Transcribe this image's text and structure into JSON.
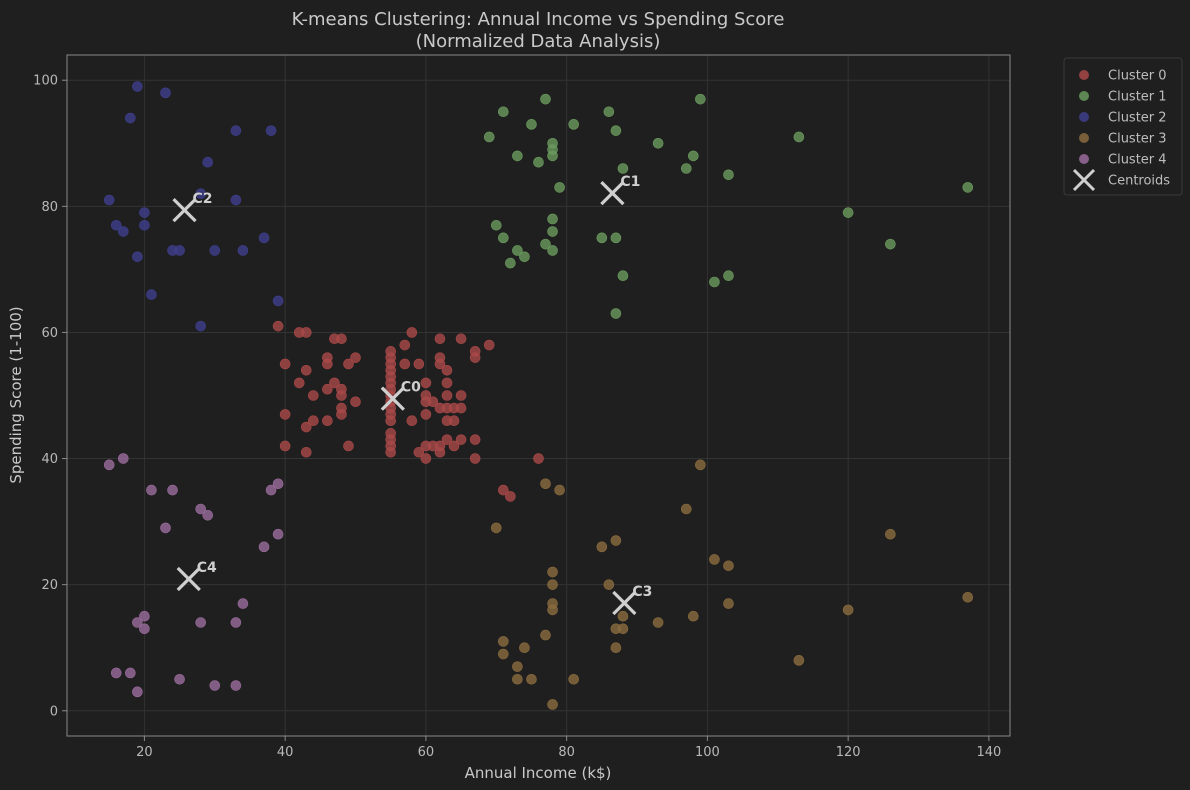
{
  "chart_data": {
    "type": "scatter",
    "title": "K-means Clustering: Annual Income vs Spending Score",
    "subtitle": "(Normalized Data Analysis)",
    "xlabel": "Annual Income (k$)",
    "ylabel": "Spending Score (1-100)",
    "xlim": [
      9,
      143
    ],
    "ylim": [
      -4,
      104
    ],
    "xticks": [
      20,
      40,
      60,
      80,
      100,
      120,
      140
    ],
    "yticks": [
      0,
      20,
      40,
      60,
      80,
      100
    ],
    "grid": true,
    "legend_position": "outside-top-right",
    "colors": {
      "background": "#1f1f1f",
      "axes_border": "#8a8a8a",
      "grid": "#333333",
      "centroid": "#cfcfcf"
    },
    "series": [
      {
        "name": "Cluster 0",
        "color": "#a94848",
        "points": [
          [
            39,
            61
          ],
          [
            42,
            60
          ],
          [
            43,
            60
          ],
          [
            47,
            59
          ],
          [
            48,
            59
          ],
          [
            58,
            60
          ],
          [
            57,
            58
          ],
          [
            62,
            59
          ],
          [
            65,
            59
          ],
          [
            69,
            58
          ],
          [
            67,
            57
          ],
          [
            62,
            56
          ],
          [
            67,
            56
          ],
          [
            40,
            55
          ],
          [
            46,
            56
          ],
          [
            50,
            56
          ],
          [
            46,
            55
          ],
          [
            49,
            55
          ],
          [
            55,
            57
          ],
          [
            55,
            56
          ],
          [
            55,
            55
          ],
          [
            55,
            54
          ],
          [
            57,
            55
          ],
          [
            59,
            55
          ],
          [
            62,
            55
          ],
          [
            63,
            54
          ],
          [
            42,
            52
          ],
          [
            43,
            54
          ],
          [
            46,
            51
          ],
          [
            47,
            52
          ],
          [
            48,
            51
          ],
          [
            55,
            53
          ],
          [
            55,
            52
          ],
          [
            55,
            51
          ],
          [
            60,
            52
          ],
          [
            63,
            52
          ],
          [
            44,
            50
          ],
          [
            48,
            50
          ],
          [
            50,
            49
          ],
          [
            55,
            50
          ],
          [
            55,
            49
          ],
          [
            55,
            48
          ],
          [
            60,
            50
          ],
          [
            60,
            49
          ],
          [
            61,
            49
          ],
          [
            62,
            48
          ],
          [
            63,
            50
          ],
          [
            63,
            48
          ],
          [
            65,
            50
          ],
          [
            65,
            48
          ],
          [
            40,
            47
          ],
          [
            48,
            48
          ],
          [
            48,
            47
          ],
          [
            55,
            47
          ],
          [
            55,
            46
          ],
          [
            60,
            47
          ],
          [
            64,
            48
          ],
          [
            43,
            45
          ],
          [
            44,
            46
          ],
          [
            46,
            46
          ],
          [
            55,
            44
          ],
          [
            55,
            43
          ],
          [
            58,
            46
          ],
          [
            63,
            46
          ],
          [
            64,
            46
          ],
          [
            40,
            42
          ],
          [
            43,
            41
          ],
          [
            49,
            42
          ],
          [
            55,
            42
          ],
          [
            55,
            41
          ],
          [
            59,
            41
          ],
          [
            60,
            42
          ],
          [
            61,
            42
          ],
          [
            62,
            42
          ],
          [
            62,
            41
          ],
          [
            63,
            43
          ],
          [
            64,
            42
          ],
          [
            65,
            43
          ],
          [
            67,
            43
          ],
          [
            60,
            40
          ],
          [
            67,
            40
          ],
          [
            76,
            40
          ],
          [
            71,
            35
          ],
          [
            72,
            34
          ]
        ]
      },
      {
        "name": "Cluster 1",
        "color": "#6a9a5e",
        "points": [
          [
            71,
            95
          ],
          [
            77,
            97
          ],
          [
            75,
            93
          ],
          [
            81,
            93
          ],
          [
            86,
            95
          ],
          [
            87,
            92
          ],
          [
            99,
            97
          ],
          [
            69,
            91
          ],
          [
            73,
            88
          ],
          [
            76,
            87
          ],
          [
            78,
            90
          ],
          [
            78,
            89
          ],
          [
            78,
            88
          ],
          [
            79,
            83
          ],
          [
            88,
            86
          ],
          [
            93,
            90
          ],
          [
            97,
            86
          ],
          [
            98,
            88
          ],
          [
            103,
            85
          ],
          [
            113,
            91
          ],
          [
            137,
            83
          ],
          [
            120,
            79
          ],
          [
            126,
            74
          ],
          [
            70,
            77
          ],
          [
            71,
            75
          ],
          [
            73,
            73
          ],
          [
            74,
            72
          ],
          [
            72,
            71
          ],
          [
            77,
            74
          ],
          [
            78,
            78
          ],
          [
            78,
            76
          ],
          [
            78,
            73
          ],
          [
            85,
            75
          ],
          [
            87,
            75
          ],
          [
            88,
            69
          ],
          [
            101,
            68
          ],
          [
            103,
            69
          ],
          [
            87,
            63
          ]
        ]
      },
      {
        "name": "Cluster 2",
        "color": "#3e3f8c",
        "points": [
          [
            19,
            99
          ],
          [
            23,
            98
          ],
          [
            18,
            94
          ],
          [
            33,
            92
          ],
          [
            38,
            92
          ],
          [
            29,
            87
          ],
          [
            15,
            81
          ],
          [
            20,
            79
          ],
          [
            28,
            82
          ],
          [
            33,
            81
          ],
          [
            16,
            77
          ],
          [
            17,
            76
          ],
          [
            20,
            77
          ],
          [
            19,
            72
          ],
          [
            24,
            73
          ],
          [
            25,
            73
          ],
          [
            30,
            73
          ],
          [
            34,
            73
          ],
          [
            37,
            75
          ],
          [
            21,
            66
          ],
          [
            39,
            65
          ],
          [
            28,
            61
          ]
        ]
      },
      {
        "name": "Cluster 3",
        "color": "#8a6b3e",
        "points": [
          [
            99,
            39
          ],
          [
            77,
            36
          ],
          [
            79,
            35
          ],
          [
            97,
            32
          ],
          [
            70,
            29
          ],
          [
            87,
            27
          ],
          [
            85,
            26
          ],
          [
            126,
            28
          ],
          [
            101,
            24
          ],
          [
            103,
            23
          ],
          [
            78,
            22
          ],
          [
            78,
            20
          ],
          [
            86,
            20
          ],
          [
            78,
            17
          ],
          [
            78,
            16
          ],
          [
            88,
            15
          ],
          [
            103,
            17
          ],
          [
            120,
            16
          ],
          [
            137,
            18
          ],
          [
            77,
            12
          ],
          [
            87,
            13
          ],
          [
            88,
            13
          ],
          [
            93,
            14
          ],
          [
            98,
            15
          ],
          [
            71,
            11
          ],
          [
            71,
            9
          ],
          [
            74,
            10
          ],
          [
            73,
            7
          ],
          [
            87,
            10
          ],
          [
            73,
            5
          ],
          [
            75,
            5
          ],
          [
            81,
            5
          ],
          [
            113,
            8
          ],
          [
            78,
            1
          ]
        ]
      },
      {
        "name": "Cluster 4",
        "color": "#9a6b9c",
        "points": [
          [
            15,
            39
          ],
          [
            17,
            40
          ],
          [
            21,
            35
          ],
          [
            24,
            35
          ],
          [
            38,
            35
          ],
          [
            39,
            36
          ],
          [
            28,
            32
          ],
          [
            29,
            31
          ],
          [
            23,
            29
          ],
          [
            39,
            28
          ],
          [
            37,
            26
          ],
          [
            34,
            17
          ],
          [
            20,
            15
          ],
          [
            19,
            14
          ],
          [
            20,
            13
          ],
          [
            28,
            14
          ],
          [
            33,
            14
          ],
          [
            16,
            6
          ],
          [
            18,
            6
          ],
          [
            19,
            3
          ],
          [
            25,
            5
          ],
          [
            30,
            4
          ],
          [
            33,
            4
          ]
        ]
      }
    ],
    "centroids": {
      "name": "Centroids",
      "points": [
        {
          "label": "C0",
          "x": 55.3,
          "y": 49.5
        },
        {
          "label": "C1",
          "x": 86.5,
          "y": 82.1
        },
        {
          "label": "C2",
          "x": 25.7,
          "y": 79.4
        },
        {
          "label": "C3",
          "x": 88.2,
          "y": 17.1
        },
        {
          "label": "C4",
          "x": 26.3,
          "y": 20.9
        }
      ]
    }
  }
}
